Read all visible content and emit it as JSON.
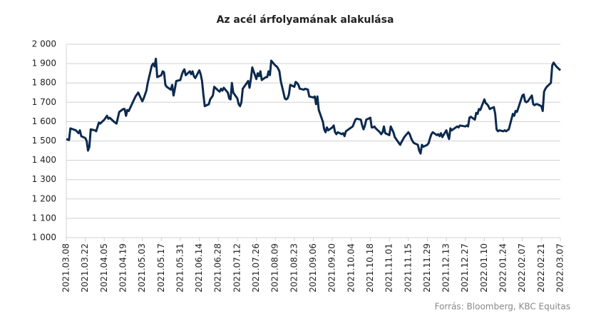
{
  "chart_data": {
    "type": "line",
    "title": "Az acél árfolyamának alakulása",
    "source": "Forrás: Bloomberg,  KBC Equitas",
    "x": [
      "2021.03.08",
      "2021.03.10",
      "2021.03.11",
      "2021.03.15",
      "2021.03.17",
      "2021.03.18",
      "2021.03.19",
      "2021.03.22",
      "2021.03.23",
      "2021.03.24",
      "2021.03.25",
      "2021.03.26",
      "2021.03.29",
      "2021.03.30",
      "2021.04.01",
      "2021.04.02",
      "2021.04.05",
      "2021.04.07",
      "2021.04.08",
      "2021.04.09",
      "2021.04.12",
      "2021.04.14",
      "2021.04.16",
      "2021.04.19",
      "2021.04.20",
      "2021.04.21",
      "2021.04.22",
      "2021.04.23",
      "2021.04.26",
      "2021.04.28",
      "2021.04.30",
      "2021.05.03",
      "2021.05.04",
      "2021.05.06",
      "2021.05.07",
      "2021.05.10",
      "2021.05.11",
      "2021.05.12",
      "2021.05.13",
      "2021.05.14",
      "2021.05.17",
      "2021.05.18",
      "2021.05.19",
      "2021.05.20",
      "2021.05.21",
      "2021.05.24",
      "2021.05.25",
      "2021.05.26",
      "2021.05.27",
      "2021.05.28",
      "2021.05.31",
      "2021.06.01",
      "2021.06.02",
      "2021.06.03",
      "2021.06.04",
      "2021.06.07",
      "2021.06.08",
      "2021.06.09",
      "2021.06.10",
      "2021.06.11",
      "2021.06.14",
      "2021.06.15",
      "2021.06.16",
      "2021.06.17",
      "2021.06.18",
      "2021.06.21",
      "2021.06.22",
      "2021.06.24",
      "2021.06.25",
      "2021.06.28",
      "2021.06.29",
      "2021.06.30",
      "2021.07.01",
      "2021.07.02",
      "2021.07.05",
      "2021.07.06",
      "2021.07.07",
      "2021.07.08",
      "2021.07.09",
      "2021.07.12",
      "2021.07.13",
      "2021.07.14",
      "2021.07.15",
      "2021.07.16",
      "2021.07.19",
      "2021.07.20",
      "2021.07.21",
      "2021.07.22",
      "2021.07.23",
      "2021.07.26",
      "2021.07.27",
      "2021.07.28",
      "2021.07.29",
      "2021.07.30",
      "2021.08.02",
      "2021.08.03",
      "2021.08.04",
      "2021.08.05",
      "2021.08.06",
      "2021.08.09",
      "2021.08.10",
      "2021.08.11",
      "2021.08.12",
      "2021.08.13",
      "2021.08.16",
      "2021.08.17",
      "2021.08.18",
      "2021.08.19",
      "2021.08.20",
      "2021.08.23",
      "2021.08.24",
      "2021.08.25",
      "2021.08.26",
      "2021.08.27",
      "2021.08.30",
      "2021.08.31",
      "2021.09.02",
      "2021.09.03",
      "2021.09.06",
      "2021.09.07",
      "2021.09.08",
      "2021.09.09",
      "2021.09.10",
      "2021.09.13",
      "2021.09.14",
      "2021.09.15",
      "2021.09.16",
      "2021.09.17",
      "2021.09.20",
      "2021.09.21",
      "2021.09.22",
      "2021.09.23",
      "2021.09.24",
      "2021.09.27",
      "2021.09.28",
      "2021.09.29",
      "2021.09.30",
      "2021.10.01",
      "2021.10.04",
      "2021.10.05",
      "2021.10.07",
      "2021.10.08",
      "2021.10.11",
      "2021.10.12",
      "2021.10.13",
      "2021.10.14",
      "2021.10.15",
      "2021.10.18",
      "2021.10.19",
      "2021.10.20",
      "2021.10.21",
      "2021.10.22",
      "2021.10.25",
      "2021.10.26",
      "2021.10.27",
      "2021.10.28",
      "2021.10.29",
      "2021.11.01",
      "2021.11.02",
      "2021.11.03",
      "2021.11.04",
      "2021.11.05",
      "2021.11.08",
      "2021.11.09",
      "2021.11.10",
      "2021.11.12",
      "2021.11.15",
      "2021.11.16",
      "2021.11.17",
      "2021.11.18",
      "2021.11.19",
      "2021.11.22",
      "2021.11.23",
      "2021.11.24",
      "2021.11.25",
      "2021.11.26",
      "2021.11.29",
      "2021.11.30",
      "2021.12.01",
      "2021.12.02",
      "2021.12.03",
      "2021.12.06",
      "2021.12.07",
      "2021.12.08",
      "2021.12.09",
      "2021.12.10",
      "2021.12.13",
      "2021.12.14",
      "2021.12.15",
      "2021.12.16",
      "2021.12.17",
      "2021.12.20",
      "2021.12.21",
      "2021.12.22",
      "2021.12.23",
      "2021.12.27",
      "2021.12.28",
      "2021.12.29",
      "2021.12.30",
      "2021.12.31",
      "2022.01.03",
      "2022.01.04",
      "2022.01.05",
      "2022.01.06",
      "2022.01.07",
      "2022.01.10",
      "2022.01.11",
      "2022.01.12",
      "2022.01.13",
      "2022.01.14",
      "2022.01.17",
      "2022.01.18",
      "2022.01.19",
      "2022.01.20",
      "2022.01.21",
      "2022.01.24",
      "2022.01.25",
      "2022.01.26",
      "2022.01.27",
      "2022.01.28",
      "2022.01.31",
      "2022.02.01",
      "2022.02.02",
      "2022.02.03",
      "2022.02.04",
      "2022.02.07",
      "2022.02.08",
      "2022.02.09",
      "2022.02.10",
      "2022.02.11",
      "2022.02.14",
      "2022.02.15",
      "2022.02.16",
      "2022.02.17",
      "2022.02.18",
      "2022.02.21",
      "2022.02.22",
      "2022.02.23",
      "2022.02.24",
      "2022.02.25",
      "2022.02.28",
      "2022.03.01",
      "2022.03.02",
      "2022.03.03",
      "2022.03.04",
      "2022.03.07"
    ],
    "values": [
      1510,
      1505,
      1565,
      1555,
      1540,
      1555,
      1525,
      1515,
      1500,
      1450,
      1470,
      1560,
      1555,
      1550,
      1595,
      1590,
      1610,
      1630,
      1615,
      1620,
      1600,
      1590,
      1650,
      1665,
      1665,
      1630,
      1660,
      1655,
      1700,
      1730,
      1750,
      1705,
      1720,
      1760,
      1800,
      1890,
      1900,
      1885,
      1925,
      1830,
      1840,
      1860,
      1855,
      1790,
      1780,
      1765,
      1790,
      1735,
      1770,
      1810,
      1815,
      1840,
      1860,
      1870,
      1840,
      1860,
      1845,
      1860,
      1835,
      1825,
      1865,
      1845,
      1810,
      1740,
      1680,
      1690,
      1715,
      1735,
      1780,
      1760,
      1755,
      1770,
      1760,
      1775,
      1750,
      1720,
      1715,
      1800,
      1750,
      1720,
      1690,
      1680,
      1700,
      1770,
      1800,
      1810,
      1775,
      1820,
      1880,
      1820,
      1850,
      1835,
      1860,
      1815,
      1830,
      1830,
      1860,
      1840,
      1915,
      1890,
      1885,
      1875,
      1860,
      1810,
      1720,
      1715,
      1720,
      1740,
      1790,
      1780,
      1805,
      1800,
      1790,
      1770,
      1765,
      1770,
      1765,
      1730,
      1725,
      1730,
      1690,
      1730,
      1660,
      1600,
      1560,
      1545,
      1570,
      1555,
      1570,
      1580,
      1545,
      1535,
      1545,
      1535,
      1540,
      1525,
      1550,
      1555,
      1570,
      1575,
      1610,
      1615,
      1610,
      1580,
      1560,
      1580,
      1610,
      1620,
      1570,
      1570,
      1575,
      1565,
      1545,
      1535,
      1545,
      1575,
      1540,
      1530,
      1575,
      1560,
      1545,
      1520,
      1490,
      1480,
      1495,
      1520,
      1545,
      1535,
      1515,
      1500,
      1490,
      1480,
      1450,
      1435,
      1480,
      1470,
      1480,
      1490,
      1515,
      1535,
      1545,
      1530,
      1535,
      1525,
      1540,
      1520,
      1555,
      1530,
      1510,
      1565,
      1555,
      1570,
      1575,
      1570,
      1580,
      1575,
      1580,
      1575,
      1620,
      1625,
      1610,
      1645,
      1640,
      1665,
      1660,
      1715,
      1695,
      1690,
      1680,
      1665,
      1675,
      1640,
      1560,
      1550,
      1555,
      1550,
      1555,
      1550,
      1555,
      1560,
      1640,
      1630,
      1655,
      1650,
      1670,
      1735,
      1740,
      1705,
      1700,
      1705,
      1735,
      1690,
      1685,
      1690,
      1690,
      1680,
      1655,
      1755,
      1770,
      1780,
      1800,
      1890,
      1905,
      1895,
      1885,
      1865
    ],
    "color": "#0c2a4e",
    "xlim": [
      "2021.03.08",
      "2022.03.07"
    ],
    "xticks": [
      "2021.03.08",
      "2021.03.22",
      "2021.04.05",
      "2021.04.19",
      "2021.05.03",
      "2021.05.17",
      "2021.05.31",
      "2021.06.14",
      "2021.06.28",
      "2021.07.12",
      "2021.07.26",
      "2021.08.09",
      "2021.08.23",
      "2021.09.06",
      "2021.09.20",
      "2021.10.04",
      "2021.10.18",
      "2021.11.01",
      "2021.11.15",
      "2021.11.29",
      "2021.12.13",
      "2021.12.27",
      "2022.01.10",
      "2022.01.24",
      "2022.02.07",
      "2022.02.21",
      "2022.03.07"
    ],
    "ylim": [
      1000,
      2000
    ],
    "yticks": [
      {
        "value": 1000,
        "label": "1 000"
      },
      {
        "value": 1100,
        "label": "1 100"
      },
      {
        "value": 1200,
        "label": "1 200"
      },
      {
        "value": 1300,
        "label": "1 300"
      },
      {
        "value": 1400,
        "label": "1 400"
      },
      {
        "value": 1500,
        "label": "1 500"
      },
      {
        "value": 1600,
        "label": "1 600"
      },
      {
        "value": 1700,
        "label": "1 700"
      },
      {
        "value": 1800,
        "label": "1 800"
      },
      {
        "value": 1900,
        "label": "1 900"
      },
      {
        "value": 2000,
        "label": "2 000"
      }
    ],
    "grid": true
  }
}
